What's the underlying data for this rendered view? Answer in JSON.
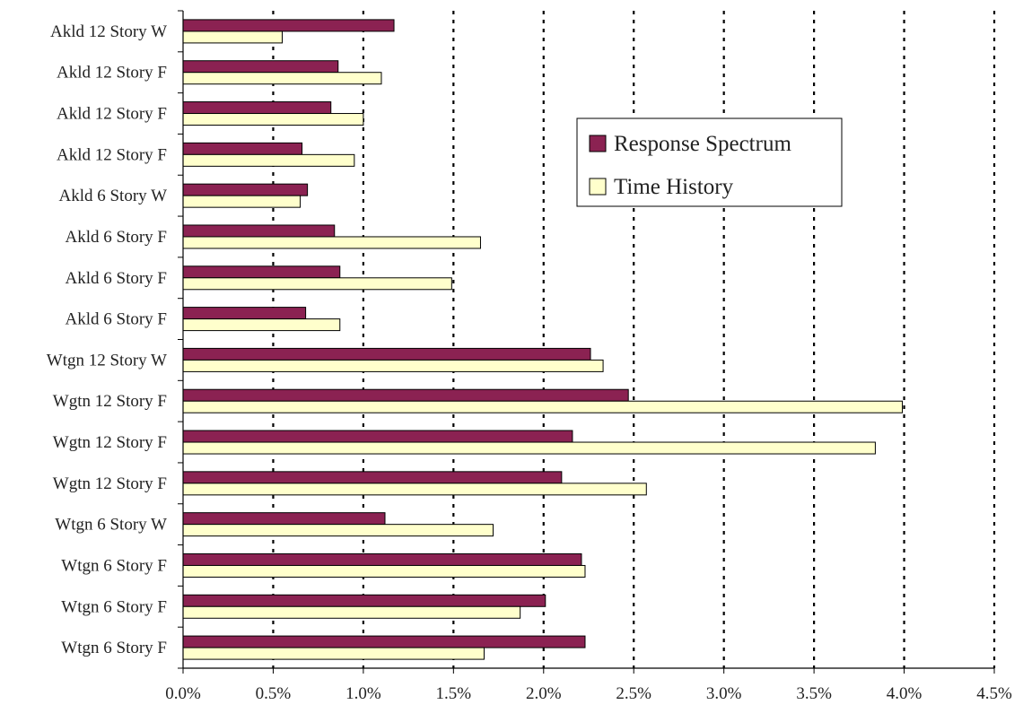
{
  "chart_data": {
    "type": "bar",
    "orientation": "horizontal",
    "categories": [
      "Akld 12 Story W",
      "Akld 12 Story F",
      "Akld 12 Story F",
      "Akld 12 Story F",
      "Akld 6 Story W",
      "Akld 6 Story F",
      "Akld 6 Story F",
      "Akld 6 Story F",
      "Wtgn 12 Story W",
      "Wgtn 12 Story F",
      "Wgtn 12 Story F",
      "Wgtn 12 Story F",
      "Wtgn 6 Story W",
      "Wtgn 6 Story F",
      "Wtgn 6 Story F",
      "Wtgn 6 Story F"
    ],
    "series": [
      {
        "name": "Response Spectrum",
        "color": "#8B2252",
        "values": [
          1.17,
          0.86,
          0.82,
          0.66,
          0.69,
          0.84,
          0.87,
          0.68,
          2.26,
          2.47,
          2.16,
          2.1,
          1.12,
          2.21,
          2.01,
          2.23
        ]
      },
      {
        "name": "Time History",
        "color": "#FFFFCC",
        "values": [
          0.55,
          1.1,
          1.0,
          0.95,
          0.65,
          1.65,
          1.49,
          0.87,
          2.33,
          3.99,
          3.84,
          2.57,
          1.72,
          2.23,
          1.87,
          1.67
        ]
      }
    ],
    "xlim": [
      0,
      4.5
    ],
    "xticks": [
      0,
      0.5,
      1.0,
      1.5,
      2.0,
      2.5,
      3.0,
      3.5,
      4.0,
      4.5
    ],
    "xtick_labels": [
      "0.0%",
      "0.5%",
      "1.0%",
      "1.5%",
      "2.0%",
      "2.5%",
      "3.0%",
      "3.5%",
      "4.0%",
      "4.5%"
    ],
    "grid": "vertical dotted",
    "legend_position": "upper-middle-right",
    "title": "",
    "xlabel": "",
    "ylabel": ""
  }
}
